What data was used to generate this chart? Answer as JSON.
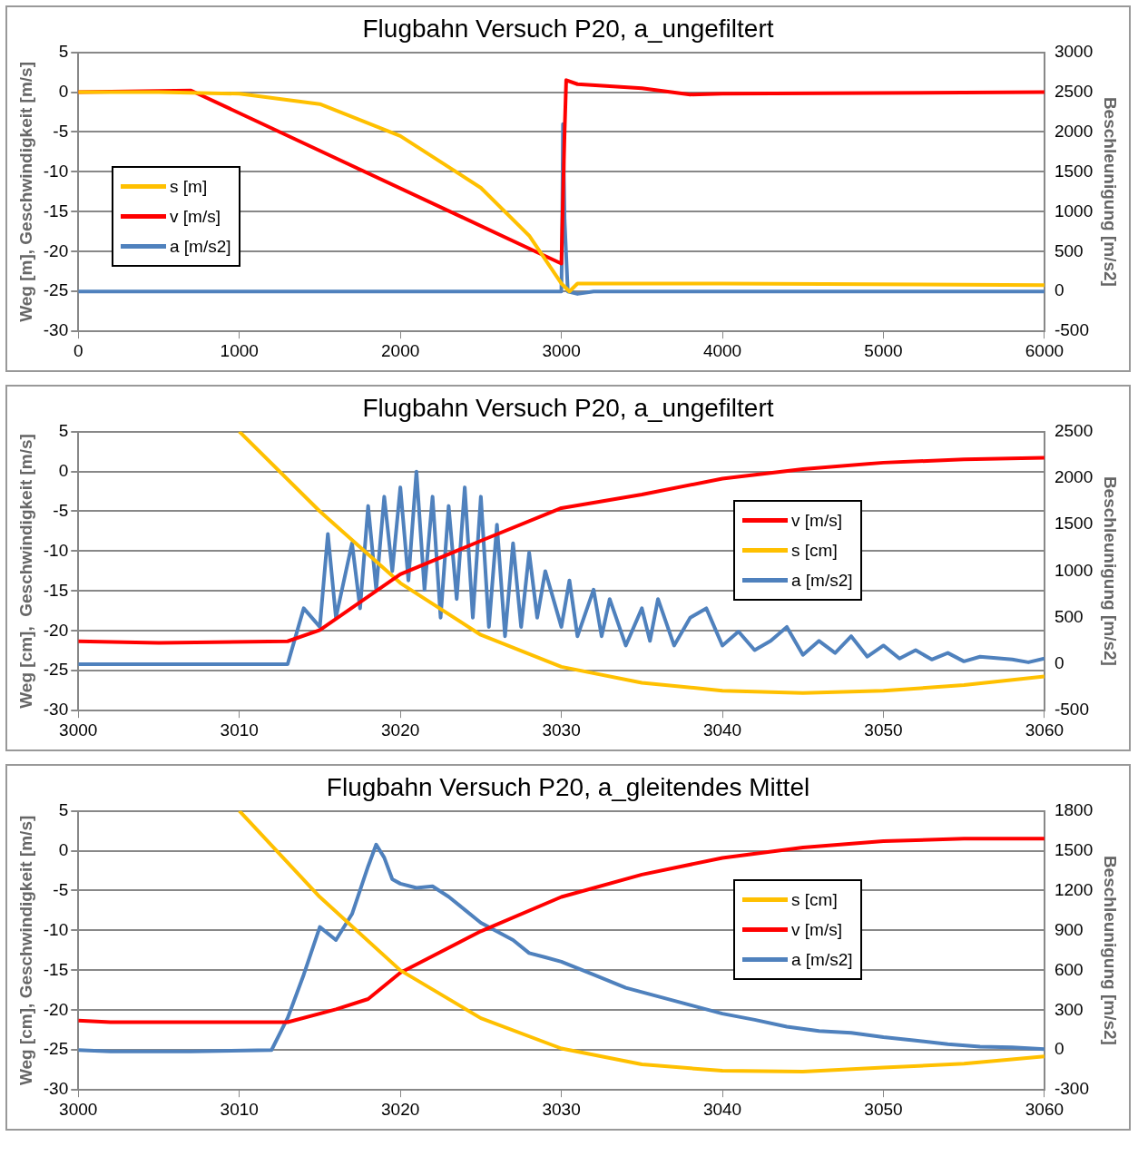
{
  "chart_data": [
    {
      "type": "line",
      "title": "Flugbahn Versuch P20, a_ungefiltert",
      "ylabel": "Weg [m], Geschwindigkeit [m/s]",
      "y2label": "Beschleunigung [m/s2]",
      "xlim": [
        0,
        6000
      ],
      "xticks": [
        0,
        1000,
        2000,
        3000,
        4000,
        5000,
        6000
      ],
      "ylim": [
        -30,
        5
      ],
      "yticks": [
        -30,
        -25,
        -20,
        -15,
        -10,
        -5,
        0,
        5
      ],
      "y2lim": [
        -500,
        3000
      ],
      "y2ticks": [
        -500,
        0,
        500,
        1000,
        1500,
        2000,
        2500,
        3000
      ],
      "grid": "y",
      "legend": "left",
      "marker": "none",
      "series": [
        {
          "name": "s [m]",
          "color": "#ffc000",
          "x": [
            0,
            500,
            1000,
            1500,
            2000,
            2500,
            2800,
            3000,
            3050,
            3100,
            4000,
            6000
          ],
          "values": [
            0,
            0,
            -0.2,
            -1.5,
            -5.5,
            -12,
            -18,
            -24,
            -25,
            -24,
            -24,
            -24.2
          ]
        },
        {
          "name": "v [m/s]",
          "color": "#ff0000",
          "x": [
            0,
            700,
            3000,
            3020,
            3030,
            3100,
            3500,
            3800,
            4000,
            6000
          ],
          "values": [
            0,
            0.2,
            -21.5,
            -5,
            1.5,
            1,
            0.5,
            -0.3,
            -0.2,
            0
          ]
        },
        {
          "name": "a [m/s2]",
          "color": "#4f81bd",
          "axis": "y2",
          "x": [
            0,
            3000,
            3005,
            3010,
            3020,
            3040,
            3100,
            3200,
            6000
          ],
          "values": [
            0,
            0,
            800,
            2100,
            900,
            0,
            -30,
            0,
            0
          ]
        }
      ]
    },
    {
      "type": "line",
      "title": "Flugbahn Versuch P20, a_ungefiltert",
      "ylabel": "Weg [cm],  Geschwindigkeit [m/s]",
      "y2label": "Beschleunigung [m/s2]",
      "xlim": [
        3000,
        3060
      ],
      "xticks": [
        3000,
        3010,
        3020,
        3030,
        3040,
        3050,
        3060
      ],
      "ylim": [
        -30,
        5
      ],
      "yticks": [
        -30,
        -25,
        -20,
        -15,
        -10,
        -5,
        0,
        5
      ],
      "y2lim": [
        -500,
        2500
      ],
      "y2ticks": [
        -500,
        0,
        500,
        1000,
        1500,
        2000,
        2500
      ],
      "grid": "y",
      "legend": "right",
      "marker": "none",
      "series": [
        {
          "name": "v [m/s]",
          "color": "#ff0000",
          "x": [
            3000,
            3005,
            3013,
            3015,
            3020,
            3025,
            3030,
            3035,
            3040,
            3045,
            3050,
            3055,
            3060
          ],
          "values": [
            -21.3,
            -21.5,
            -21.3,
            -19.9,
            -12.9,
            -8.7,
            -4.6,
            -2.9,
            -0.9,
            0.3,
            1.1,
            1.5,
            1.7
          ]
        },
        {
          "name": "s [cm]",
          "color": "#ffc000",
          "x": [
            3010,
            3015,
            3020,
            3025,
            3030,
            3035,
            3040,
            3045,
            3050,
            3055,
            3060
          ],
          "values": [
            5,
            -5,
            -14,
            -20.5,
            -24.5,
            -26.5,
            -27.5,
            -27.8,
            -27.5,
            -26.8,
            -25.7
          ]
        },
        {
          "name": "a [m/s2]",
          "color": "#4f81bd",
          "axis": "y2",
          "x": [
            3000,
            3013,
            3014,
            3015,
            3015.5,
            3016,
            3017,
            3017.5,
            3018,
            3018.5,
            3019,
            3019.5,
            3020,
            3020.5,
            3021,
            3021.5,
            3022,
            3022.5,
            3023,
            3023.5,
            3024,
            3024.5,
            3025,
            3025.5,
            3026,
            3026.5,
            3027,
            3027.5,
            3028,
            3028.5,
            3029,
            3030,
            3030.5,
            3031,
            3032,
            3032.5,
            3033,
            3034,
            3035,
            3035.5,
            3036,
            3037,
            3038,
            3039,
            3040,
            3041,
            3042,
            3043,
            3044,
            3045,
            3046,
            3047,
            3048,
            3049,
            3050,
            3051,
            3052,
            3053,
            3054,
            3055,
            3056,
            3058,
            3059,
            3060
          ],
          "values": [
            0,
            0,
            600,
            400,
            1400,
            500,
            1300,
            600,
            1700,
            800,
            1800,
            1000,
            1900,
            900,
            2070,
            800,
            1800,
            500,
            1700,
            700,
            1900,
            500,
            1800,
            400,
            1500,
            300,
            1300,
            400,
            1200,
            500,
            1000,
            400,
            900,
            300,
            800,
            300,
            700,
            200,
            600,
            250,
            700,
            200,
            500,
            600,
            200,
            350,
            150,
            250,
            400,
            100,
            250,
            120,
            300,
            80,
            200,
            60,
            150,
            50,
            120,
            30,
            80,
            50,
            20,
            60
          ]
        }
      ]
    },
    {
      "type": "line",
      "title": "Flugbahn Versuch P20, a_gleitendes Mittel",
      "ylabel": "Weg [cm], Geschwindigkeit [m/s]",
      "y2label": "Beschleunigung [m/s2]",
      "xlim": [
        3000,
        3060
      ],
      "xticks": [
        3000,
        3010,
        3020,
        3030,
        3040,
        3050,
        3060
      ],
      "ylim": [
        -30,
        5
      ],
      "yticks": [
        -30,
        -25,
        -20,
        -15,
        -10,
        -5,
        0,
        5
      ],
      "y2lim": [
        -300,
        1800
      ],
      "y2ticks": [
        -300,
        0,
        300,
        600,
        900,
        1200,
        1500,
        1800
      ],
      "grid": "y",
      "legend": "right",
      "marker": "none",
      "series": [
        {
          "name": "s [cm]",
          "color": "#ffc000",
          "x": [
            3010,
            3015,
            3020,
            3025,
            3030,
            3035,
            3040,
            3045,
            3050,
            3055,
            3060
          ],
          "values": [
            5,
            -5.8,
            -15,
            -21,
            -24.8,
            -26.8,
            -27.6,
            -27.7,
            -27.2,
            -26.7,
            -25.8
          ]
        },
        {
          "name": "v [m/s]",
          "color": "#ff0000",
          "x": [
            3000,
            3002,
            3013,
            3016,
            3018,
            3020,
            3025,
            3030,
            3035,
            3040,
            3045,
            3050,
            3055,
            3060
          ],
          "values": [
            -21.3,
            -21.5,
            -21.5,
            -19.9,
            -18.6,
            -15.3,
            -10.1,
            -5.8,
            -3,
            -0.9,
            0.4,
            1.2,
            1.5,
            1.5
          ]
        },
        {
          "name": "a [m/s2]",
          "color": "#4f81bd",
          "axis": "y2",
          "x": [
            3000,
            3002,
            3007,
            3012,
            3013,
            3014,
            3015,
            3016,
            3017,
            3018,
            3018.5,
            3019,
            3019.5,
            3020,
            3021,
            3022,
            3023,
            3024,
            3025,
            3026,
            3027,
            3028,
            3029,
            3030,
            3032,
            3034,
            3036,
            3038,
            3040,
            3042,
            3044,
            3046,
            3048,
            3050,
            3052,
            3054,
            3056,
            3058,
            3060
          ],
          "values": [
            0,
            -10,
            -10,
            0,
            241,
            567,
            926,
            828,
            1024,
            1383,
            1546,
            1448,
            1285,
            1252,
            1220,
            1232,
            1154,
            1056,
            958,
            893,
            828,
            730,
            698,
            665,
            567,
            469,
            404,
            339,
            274,
            228,
            176,
            143,
            130,
            97,
            71,
            45,
            26,
            20,
            7
          ]
        }
      ]
    }
  ]
}
